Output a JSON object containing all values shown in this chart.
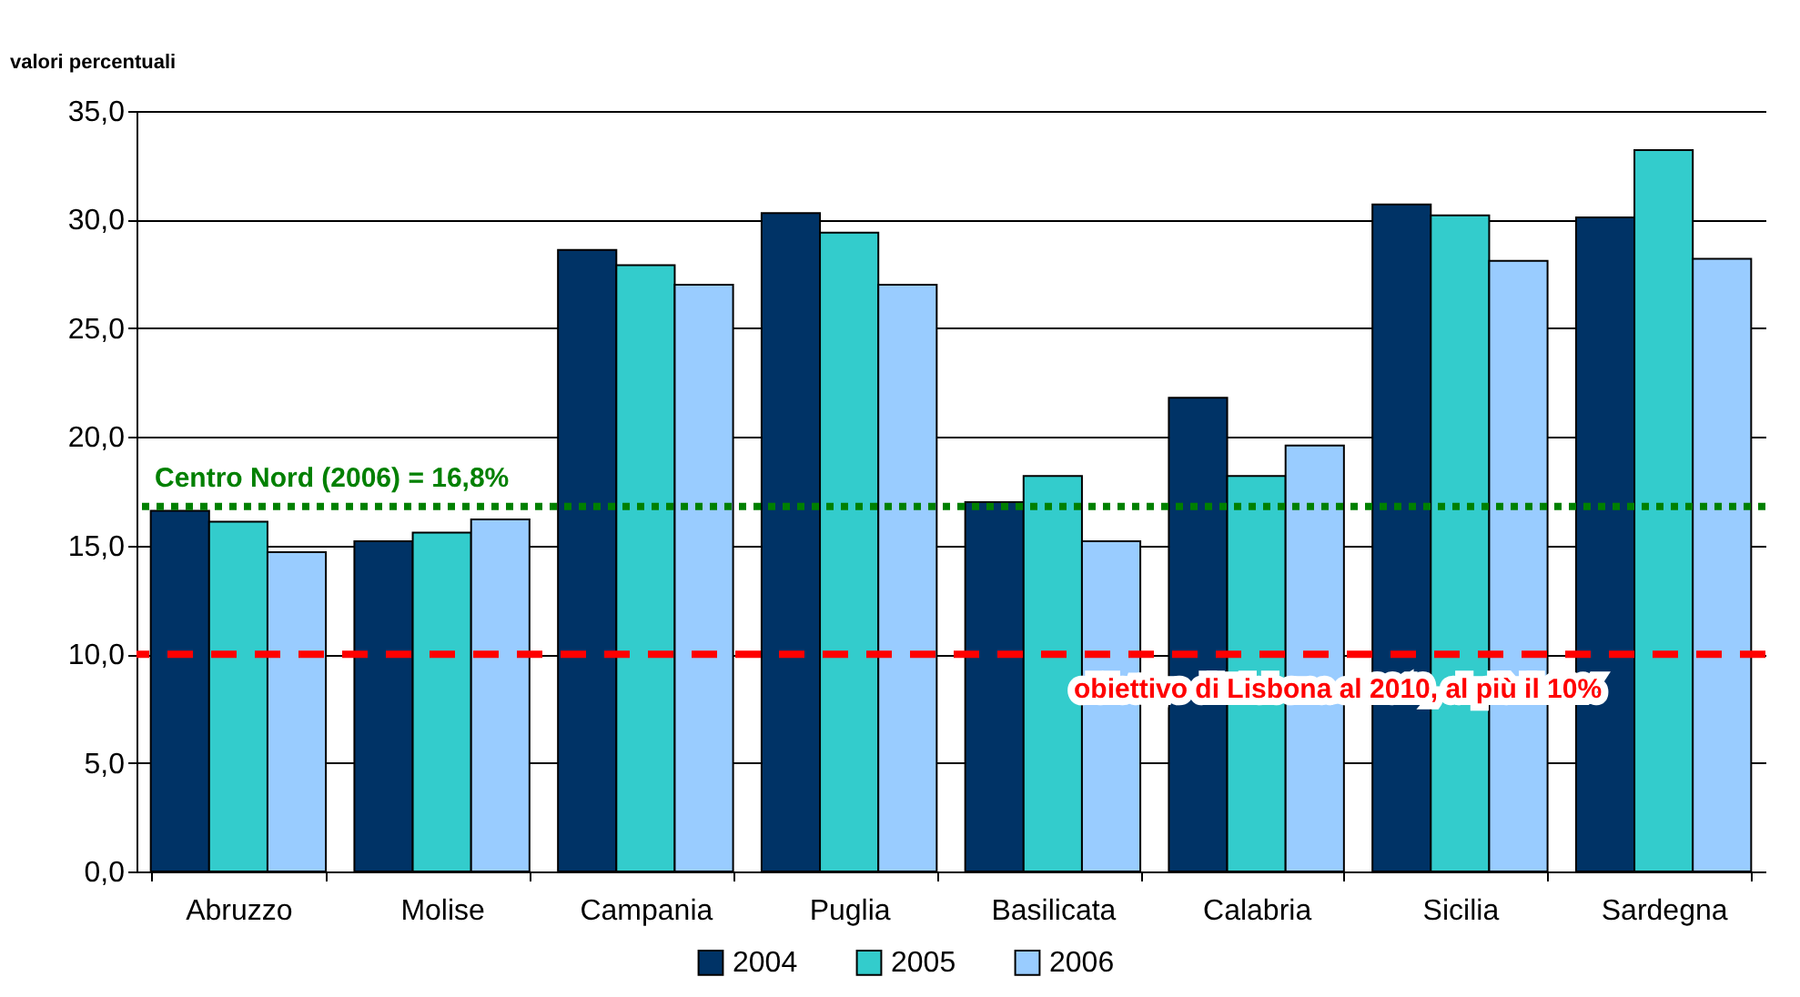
{
  "chart_data": {
    "type": "bar",
    "ylabel": "valori percentuali",
    "categories": [
      "Abruzzo",
      "Molise",
      "Campania",
      "Puglia",
      "Basilicata",
      "Calabria",
      "Sicilia",
      "Sardegna"
    ],
    "series": [
      {
        "name": "2004",
        "color": "#003366",
        "values": [
          16.6,
          15.2,
          28.6,
          30.3,
          17.0,
          21.8,
          30.7,
          30.1
        ]
      },
      {
        "name": "2005",
        "color": "#33cccc",
        "values": [
          16.1,
          15.6,
          27.9,
          29.4,
          18.2,
          18.2,
          30.2,
          33.2
        ]
      },
      {
        "name": "2006",
        "color": "#99ccff",
        "values": [
          14.7,
          16.2,
          27.0,
          27.0,
          15.2,
          19.6,
          28.1,
          28.2
        ]
      }
    ],
    "ylim": [
      0,
      35
    ],
    "yticks": [
      {
        "value": 0,
        "label": "0,0"
      },
      {
        "value": 5,
        "label": "5,0"
      },
      {
        "value": 10,
        "label": "10,0"
      },
      {
        "value": 15,
        "label": "15,0"
      },
      {
        "value": 20,
        "label": "20,0"
      },
      {
        "value": 25,
        "label": "25,0"
      },
      {
        "value": 30,
        "label": "30,0"
      },
      {
        "value": 35,
        "label": "35,0"
      }
    ],
    "ref_lines": [
      {
        "axis": "y",
        "value": 16.8,
        "label": "Centro Nord (2006) = 16,8%",
        "color": "#008000",
        "line_style": "dotted"
      },
      {
        "axis": "y",
        "value": 10,
        "label": "obiettivo di Lisbona al 2010, al più il 10%",
        "color": "#ff0000",
        "line_style": "dashed"
      }
    ],
    "grid": "y",
    "legend": "bottom"
  }
}
